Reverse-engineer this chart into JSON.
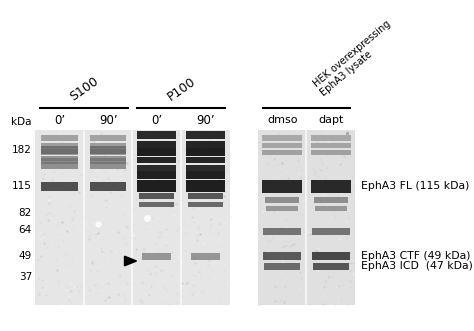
{
  "figsize": [
    4.74,
    3.31
  ],
  "dpi": 100,
  "bg_color": "#ffffff",
  "kda_labels": [
    "182",
    "115",
    "82",
    "64",
    "49",
    "37"
  ],
  "label_s100": "S100",
  "label_p100": "P100",
  "label_hek": "HEK overexpressing\nEphA3 lysate",
  "label_0min": "0’",
  "label_90min": "90’",
  "label_dmso": "dmso",
  "label_dapt": "dapt",
  "label_kda": "kDa",
  "label_epha3_fl": "EphA3 FL (115 kDa)",
  "label_epha3_ctf": "EphA3 CTF (49 kDa)",
  "label_epha3_icd": "EphA3 ICD  (47 kDa)"
}
